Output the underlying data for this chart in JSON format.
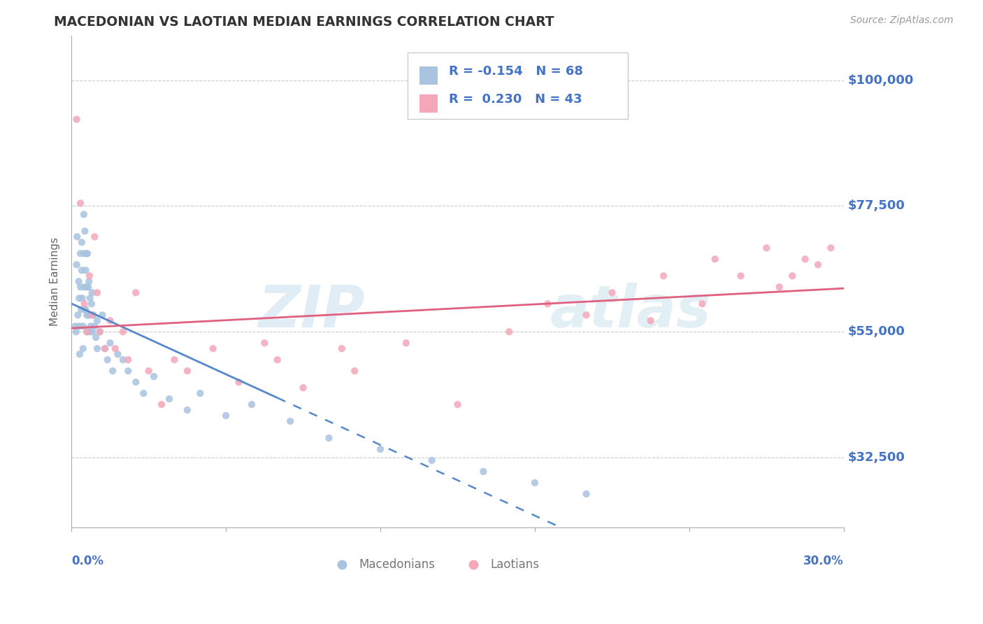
{
  "title": "MACEDONIAN VS LAOTIAN MEDIAN EARNINGS CORRELATION CHART",
  "source_text": "Source: ZipAtlas.com",
  "ylabel": "Median Earnings",
  "yticks": [
    32500,
    55000,
    77500,
    100000
  ],
  "ytick_labels": [
    "$32,500",
    "$55,000",
    "$77,500",
    "$100,000"
  ],
  "xlim": [
    0.0,
    30.0
  ],
  "ylim": [
    20000,
    108000
  ],
  "macedonian_color": "#a8c4e0",
  "laotian_color": "#f4a7b9",
  "macedonian_R": -0.154,
  "macedonian_N": 68,
  "laotian_R": 0.23,
  "laotian_N": 43,
  "trend_blue": "#5588cc",
  "trend_pink": "#e06080",
  "watermark_zip": "ZIP",
  "watermark_atlas": "atlas",
  "macedonians_label": "Macedonians",
  "laotians_label": "Laotians",
  "legend_text_color": "#4472c4",
  "title_color": "#333333",
  "source_color": "#999999",
  "axis_label_color": "#666666",
  "grid_color": "#cccccc",
  "mac_x": [
    0.15,
    0.18,
    0.2,
    0.22,
    0.25,
    0.28,
    0.3,
    0.3,
    0.32,
    0.35,
    0.35,
    0.38,
    0.4,
    0.4,
    0.42,
    0.45,
    0.45,
    0.48,
    0.5,
    0.5,
    0.5,
    0.52,
    0.55,
    0.55,
    0.58,
    0.6,
    0.6,
    0.6,
    0.62,
    0.65,
    0.65,
    0.68,
    0.7,
    0.7,
    0.72,
    0.75,
    0.78,
    0.8,
    0.82,
    0.85,
    0.9,
    0.95,
    1.0,
    1.0,
    1.1,
    1.2,
    1.3,
    1.4,
    1.5,
    1.6,
    1.8,
    2.0,
    2.2,
    2.5,
    2.8,
    3.2,
    3.8,
    4.5,
    5.0,
    6.0,
    7.0,
    8.5,
    10.0,
    12.0,
    14.0,
    16.0,
    18.0,
    20.0
  ],
  "mac_y": [
    56000,
    55000,
    67000,
    72000,
    58000,
    64000,
    61000,
    56000,
    51000,
    69000,
    63000,
    59000,
    71000,
    66000,
    61000,
    56000,
    52000,
    76000,
    69000,
    63000,
    59000,
    73000,
    66000,
    59000,
    69000,
    63000,
    58000,
    55000,
    69000,
    63000,
    58000,
    64000,
    58000,
    55000,
    61000,
    56000,
    60000,
    62000,
    55000,
    58000,
    56000,
    54000,
    57000,
    52000,
    55000,
    58000,
    52000,
    50000,
    53000,
    48000,
    51000,
    50000,
    48000,
    46000,
    44000,
    47000,
    43000,
    41000,
    44000,
    40000,
    42000,
    39000,
    36000,
    34000,
    32000,
    30000,
    28000,
    26000
  ],
  "lao_x": [
    0.2,
    0.35,
    0.5,
    0.6,
    0.7,
    0.8,
    0.9,
    1.0,
    1.1,
    1.3,
    1.5,
    1.7,
    2.0,
    2.2,
    2.5,
    3.0,
    3.5,
    4.0,
    4.5,
    5.5,
    6.5,
    7.5,
    8.0,
    9.0,
    10.5,
    11.0,
    13.0,
    15.0,
    17.0,
    18.5,
    20.0,
    21.0,
    22.5,
    23.0,
    24.5,
    25.0,
    26.0,
    27.0,
    27.5,
    28.0,
    28.5,
    29.0,
    29.5
  ],
  "lao_y": [
    93000,
    78000,
    60000,
    55000,
    65000,
    58000,
    72000,
    62000,
    55000,
    52000,
    57000,
    52000,
    55000,
    50000,
    62000,
    48000,
    42000,
    50000,
    48000,
    52000,
    46000,
    53000,
    50000,
    45000,
    52000,
    48000,
    53000,
    42000,
    55000,
    60000,
    58000,
    62000,
    57000,
    65000,
    60000,
    68000,
    65000,
    70000,
    63000,
    65000,
    68000,
    67000,
    70000
  ],
  "blue_solid_end": 8.0,
  "xtick_positions": [
    0.0,
    6.0,
    12.0,
    18.0,
    24.0,
    30.0
  ]
}
